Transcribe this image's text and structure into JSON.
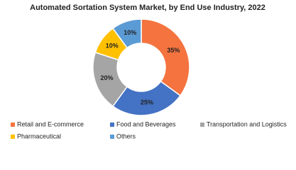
{
  "chart_data": {
    "type": "donut",
    "title": "Automated Sortation System Market, by End Use Industry, 2022",
    "categories": [
      "Retail and E-commerce",
      "Food and Beverages",
      "Transportation and Logistics",
      "Pharmaceutical",
      "Others"
    ],
    "values": [
      35,
      25,
      20,
      10,
      10
    ],
    "value_labels": [
      "35%",
      "25%",
      "20%",
      "10%",
      "10%"
    ],
    "colors": [
      "#f4733f",
      "#4472c4",
      "#a5a5a5",
      "#ffc000",
      "#5b9bd5"
    ],
    "legend": "bottom"
  }
}
